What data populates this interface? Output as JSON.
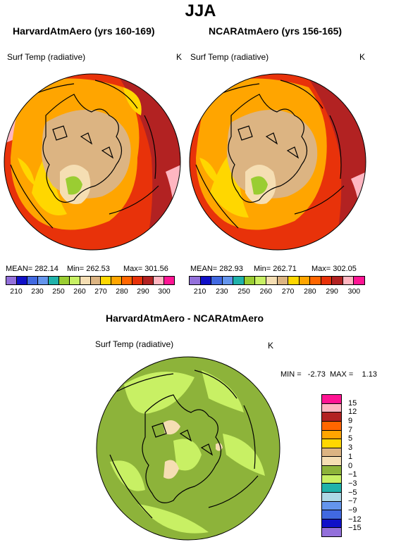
{
  "season": "JJA",
  "panels": [
    {
      "title": "HarvardAtmAero (yrs 160-169)",
      "variable": "Surf Temp (radiative)",
      "units": "K",
      "stats": {
        "mean": "MEAN= 282.14",
        "min": "Min= 262.53",
        "max": "Max= 301.56"
      }
    },
    {
      "title": "NCARAtmAero (yrs 156-165)",
      "variable": "Surf Temp (radiative)",
      "units": "K",
      "stats": {
        "mean": "MEAN= 282.93",
        "min": "Min= 262.71",
        "max": "Max= 302.05"
      }
    }
  ],
  "abs_colorbar": {
    "colors": [
      "#9370db",
      "#1010c8",
      "#4169e1",
      "#6495ed",
      "#20b2aa",
      "#9acd32",
      "#c8f064",
      "#f5deb3",
      "#dcb482",
      "#ffd700",
      "#ffa500",
      "#ff6600",
      "#e8320a",
      "#b22222",
      "#ffb6c1",
      "#ff1493"
    ],
    "labels": [
      "210",
      "230",
      "250",
      "260",
      "270",
      "280",
      "290",
      "300"
    ]
  },
  "diff_panel": {
    "title": "HarvardAtmAero - NCARAtmAero",
    "variable": "Surf Temp (radiative)",
    "units": "K",
    "stats": "MIN =   -2.73  MAX =    1.13"
  },
  "diff_colorbar": {
    "colors": [
      "#ff1493",
      "#ffb6c1",
      "#b22222",
      "#ff6600",
      "#ffa500",
      "#ffd700",
      "#dcb482",
      "#f5deb3",
      "#8db33a",
      "#c8f064",
      "#20b2aa",
      "#add8e6",
      "#6495ed",
      "#4169e1",
      "#1010c8",
      "#9370db"
    ],
    "labels": [
      "15",
      "12",
      "9",
      "7",
      "5",
      "3",
      "1",
      "0",
      "−1",
      "−3",
      "−5",
      "−7",
      "−9",
      "−12",
      "−15"
    ]
  }
}
